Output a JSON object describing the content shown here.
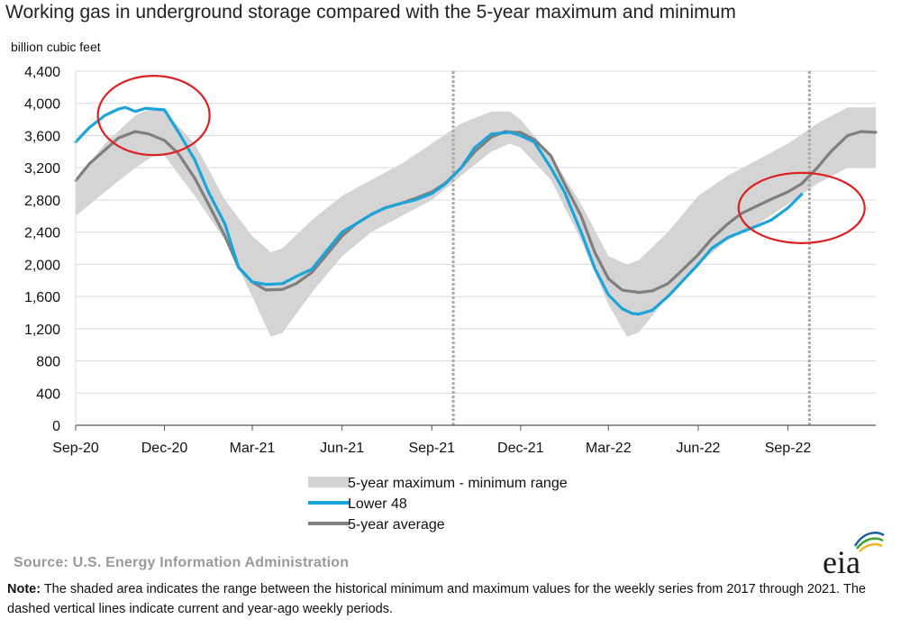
{
  "chart_data": {
    "type": "line",
    "title": "Working gas in underground  storage compared with the 5-year maximum  and minimum",
    "ylabel": "billion cubic feet",
    "ylim": [
      0,
      4400
    ],
    "yticks": [
      0,
      400,
      800,
      1200,
      1600,
      2000,
      2400,
      2800,
      3200,
      3600,
      4000,
      4400
    ],
    "ytick_labels": [
      "0",
      "400",
      "800",
      "1,200",
      "1,600",
      "2,000",
      "2,400",
      "2,800",
      "3,200",
      "3,600",
      "4,000",
      "4,400"
    ],
    "x_range": [
      "2020-09-01",
      "2022-11-30"
    ],
    "x_ticks": [
      {
        "label": "Sep-20",
        "date": "2020-09-01"
      },
      {
        "label": "Dec-20",
        "date": "2020-12-01"
      },
      {
        "label": "Mar-21",
        "date": "2021-03-01"
      },
      {
        "label": "Jun-21",
        "date": "2021-06-01"
      },
      {
        "label": "Sep-21",
        "date": "2021-09-01"
      },
      {
        "label": "Dec-21",
        "date": "2021-12-01"
      },
      {
        "label": "Mar-22",
        "date": "2022-03-01"
      },
      {
        "label": "Jun-22",
        "date": "2022-06-01"
      },
      {
        "label": "Sep-22",
        "date": "2022-09-01"
      }
    ],
    "grid": true,
    "dashed_vlines": [
      "2021-09-23",
      "2022-09-23"
    ],
    "legend_position": "bottom-center",
    "band": {
      "name": "5-year maximum - minimum range",
      "color": "#d4d4d4",
      "x": [
        "2020-09-01",
        "2020-10-01",
        "2020-11-01",
        "2020-11-20",
        "2020-12-01",
        "2021-01-01",
        "2021-02-01",
        "2021-03-01",
        "2021-03-20",
        "2021-04-01",
        "2021-05-01",
        "2021-06-01",
        "2021-07-01",
        "2021-08-01",
        "2021-09-01",
        "2021-10-01",
        "2021-11-01",
        "2021-11-20",
        "2021-12-01",
        "2022-01-01",
        "2022-02-01",
        "2022-03-01",
        "2022-03-20",
        "2022-04-01",
        "2022-05-01",
        "2022-06-01",
        "2022-07-01",
        "2022-08-01",
        "2022-09-01",
        "2022-10-01",
        "2022-11-01",
        "2022-11-30"
      ],
      "max": [
        3050,
        3500,
        3850,
        3950,
        3900,
        3500,
        2800,
        2350,
        2150,
        2200,
        2550,
        2850,
        3050,
        3250,
        3500,
        3750,
        3900,
        3900,
        3800,
        3350,
        2750,
        2100,
        2000,
        2050,
        2400,
        2850,
        3100,
        3300,
        3500,
        3750,
        3950,
        3950
      ],
      "min": [
        2600,
        2900,
        3200,
        3350,
        3350,
        2850,
        2300,
        1600,
        1100,
        1150,
        1650,
        2100,
        2400,
        2600,
        2800,
        3100,
        3400,
        3500,
        3450,
        3050,
        2300,
        1500,
        1100,
        1150,
        1600,
        2000,
        2300,
        2500,
        2750,
        3000,
        3200,
        3200
      ]
    },
    "series": [
      {
        "name": "Lower 48",
        "color": "#1ba4da",
        "x": [
          "2020-09-01",
          "2020-09-15",
          "2020-10-01",
          "2020-10-15",
          "2020-10-22",
          "2020-11-01",
          "2020-11-12",
          "2020-11-20",
          "2020-12-01",
          "2020-12-15",
          "2021-01-01",
          "2021-01-15",
          "2021-02-01",
          "2021-02-15",
          "2021-03-01",
          "2021-03-15",
          "2021-04-01",
          "2021-04-15",
          "2021-05-01",
          "2021-05-15",
          "2021-06-01",
          "2021-06-15",
          "2021-07-01",
          "2021-07-15",
          "2021-08-01",
          "2021-08-15",
          "2021-09-01",
          "2021-09-15",
          "2021-10-01",
          "2021-10-15",
          "2021-11-01",
          "2021-11-20",
          "2021-12-01",
          "2021-12-15",
          "2022-01-01",
          "2022-01-15",
          "2022-02-01",
          "2022-02-15",
          "2022-03-01",
          "2022-03-15",
          "2022-03-25",
          "2022-04-01",
          "2022-04-15",
          "2022-05-01",
          "2022-05-15",
          "2022-06-01",
          "2022-06-15",
          "2022-07-01",
          "2022-07-15",
          "2022-08-01",
          "2022-08-15",
          "2022-09-01",
          "2022-09-15"
        ],
        "values": [
          3520,
          3700,
          3850,
          3930,
          3950,
          3900,
          3940,
          3930,
          3920,
          3650,
          3300,
          2900,
          2500,
          1960,
          1780,
          1750,
          1760,
          1850,
          1940,
          2150,
          2400,
          2500,
          2620,
          2700,
          2760,
          2800,
          2880,
          3000,
          3200,
          3450,
          3620,
          3640,
          3600,
          3520,
          3200,
          2900,
          2400,
          1950,
          1620,
          1450,
          1390,
          1380,
          1430,
          1600,
          1780,
          2000,
          2200,
          2330,
          2400,
          2480,
          2550,
          2700,
          2870
        ]
      },
      {
        "name": "5-year average",
        "color": "#7f7f7f",
        "x": [
          "2020-09-01",
          "2020-09-15",
          "2020-10-01",
          "2020-10-15",
          "2020-11-01",
          "2020-11-15",
          "2020-12-01",
          "2020-12-15",
          "2021-01-01",
          "2021-01-15",
          "2021-02-01",
          "2021-02-15",
          "2021-03-01",
          "2021-03-15",
          "2021-04-01",
          "2021-04-15",
          "2021-05-01",
          "2021-05-15",
          "2021-06-01",
          "2021-06-15",
          "2021-07-01",
          "2021-07-15",
          "2021-08-01",
          "2021-08-15",
          "2021-09-01",
          "2021-09-15",
          "2021-10-01",
          "2021-10-15",
          "2021-11-01",
          "2021-11-15",
          "2021-11-25",
          "2021-12-01",
          "2021-12-15",
          "2022-01-01",
          "2022-01-15",
          "2022-02-01",
          "2022-02-15",
          "2022-03-01",
          "2022-03-15",
          "2022-04-01",
          "2022-04-15",
          "2022-05-01",
          "2022-05-15",
          "2022-06-01",
          "2022-06-15",
          "2022-07-01",
          "2022-07-15",
          "2022-08-01",
          "2022-08-15",
          "2022-09-01",
          "2022-09-15",
          "2022-10-01",
          "2022-10-15",
          "2022-11-01",
          "2022-11-15",
          "2022-11-30"
        ],
        "values": [
          3040,
          3250,
          3420,
          3570,
          3650,
          3620,
          3540,
          3380,
          3070,
          2750,
          2350,
          1960,
          1780,
          1680,
          1690,
          1760,
          1900,
          2100,
          2350,
          2500,
          2620,
          2700,
          2760,
          2820,
          2900,
          3010,
          3200,
          3400,
          3580,
          3650,
          3640,
          3640,
          3550,
          3350,
          3000,
          2600,
          2150,
          1820,
          1680,
          1650,
          1670,
          1760,
          1920,
          2120,
          2320,
          2500,
          2630,
          2730,
          2810,
          2900,
          3000,
          3200,
          3400,
          3600,
          3650,
          3640
        ]
      }
    ],
    "annotations": [
      {
        "shape": "ellipse",
        "color": "#dd2020",
        "around_date": "2020-11-20",
        "around_value": 3850
      },
      {
        "shape": "ellipse",
        "color": "#dd2020",
        "around_date": "2022-09-15",
        "around_value": 2700
      }
    ]
  },
  "source": "Source:  U.S. Energy Information Administration",
  "note": {
    "label": "Note:",
    "text": " The shaded area indicates the range between the historical minimum and maximum values for the weekly series from 2017 through 2021. The dashed vertical lines indicate current and year-ago weekly periods."
  },
  "logo": {
    "text": "eia",
    "colors": [
      "#1a5fa0",
      "#3fa535",
      "#f3b322"
    ]
  }
}
